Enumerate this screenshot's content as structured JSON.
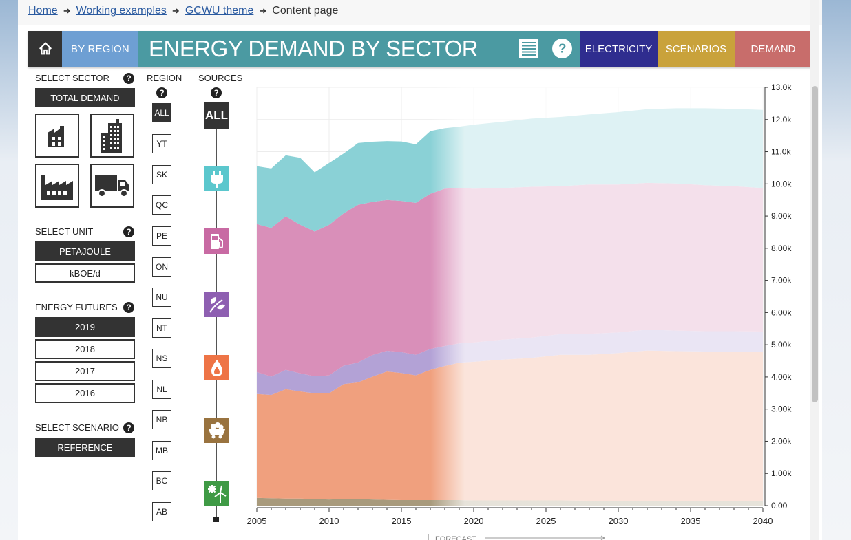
{
  "breadcrumbs": [
    "Home",
    "Working examples",
    "GCWU theme",
    "Content page"
  ],
  "header": {
    "by_region": "BY REGION",
    "title": "ENERGY DEMAND BY SECTOR",
    "electricity": "ELECTRICITY",
    "scenarios": "SCENARIOS",
    "demand": "DEMAND"
  },
  "colors": {
    "home": "#333333",
    "by_region": "#6e9fd3",
    "title": "#4b9aa2",
    "electricity": "#2f2d8f",
    "scenarios": "#c9a23b",
    "demand": "#c86d6b"
  },
  "sidebar": {
    "sector_label": "SELECT SECTOR",
    "sector_selected": "TOTAL DEMAND",
    "sector_icons": [
      "residential-icon",
      "commercial-icon",
      "industrial-icon",
      "transportation-icon"
    ],
    "unit_label": "SELECT UNIT",
    "units": [
      "PETAJOULE",
      "kBOE/d"
    ],
    "futures_label": "ENERGY FUTURES",
    "futures": [
      "2019",
      "2018",
      "2017",
      "2016"
    ],
    "scenario_label": "SELECT SCENARIO",
    "scenario": "REFERENCE"
  },
  "region": {
    "label": "REGION",
    "items": [
      "ALL",
      "YT",
      "SK",
      "QC",
      "PE",
      "ON",
      "NU",
      "NT",
      "NS",
      "NL",
      "NB",
      "MB",
      "BC",
      "AB"
    ]
  },
  "sources": {
    "label": "SOURCES",
    "all": "ALL",
    "items": [
      {
        "name": "electricity-icon",
        "color": "#5bc7cd"
      },
      {
        "name": "oil-products-icon",
        "color": "#c86aa3"
      },
      {
        "name": "biofuels-icon",
        "color": "#8e5fb1"
      },
      {
        "name": "natural-gas-icon",
        "color": "#ee7446"
      },
      {
        "name": "coal-icon",
        "color": "#99733f"
      },
      {
        "name": "renewables-icon",
        "color": "#3f9a45"
      }
    ]
  },
  "forecast_label": "FORECAST",
  "chart_data": {
    "type": "area",
    "stacked": true,
    "x": [
      2005,
      2006,
      2007,
      2008,
      2009,
      2010,
      2011,
      2012,
      2013,
      2014,
      2015,
      2016,
      2017,
      2018,
      2019,
      2020,
      2022,
      2024,
      2026,
      2028,
      2030,
      2032,
      2034,
      2036,
      2038,
      2040
    ],
    "x_ticks": [
      "2005",
      "2010",
      "2015",
      "2020",
      "2025",
      "2030",
      "2035",
      "2040"
    ],
    "y_ticks": [
      "0.00",
      "1.00k",
      "2.00k",
      "3.00k",
      "4.00k",
      "5.00k",
      "6.00k",
      "7.00k",
      "8.00k",
      "9.00k",
      "10.0k",
      "11.0k",
      "12.0k",
      "13.0k"
    ],
    "ylim": [
      0,
      13000
    ],
    "forecast_start": 2017,
    "series": [
      {
        "color": "#a89a7c",
        "values": [
          240,
          230,
          220,
          220,
          200,
          190,
          200,
          200,
          190,
          180,
          170,
          170,
          170,
          170,
          170,
          160,
          160,
          160,
          160,
          150,
          150,
          150,
          150,
          150,
          150,
          150
        ]
      },
      {
        "color": "#f0a07e",
        "values": [
          3230,
          3210,
          3400,
          3330,
          3290,
          3300,
          3580,
          3630,
          3820,
          3990,
          3950,
          3880,
          4050,
          4170,
          4270,
          4310,
          4380,
          4430,
          4530,
          4540,
          4590,
          4670,
          4650,
          4640,
          4640,
          4640
        ]
      },
      {
        "color": "#b3a2d6",
        "values": [
          680,
          570,
          600,
          560,
          530,
          560,
          570,
          620,
          670,
          640,
          650,
          640,
          650,
          620,
          600,
          600,
          620,
          630,
          640,
          650,
          640,
          650,
          640,
          630,
          630,
          620
        ]
      },
      {
        "color": "#d98fb9",
        "values": [
          4600,
          4620,
          4770,
          4620,
          4500,
          4680,
          4730,
          4900,
          4760,
          4690,
          4700,
          4720,
          4820,
          4890,
          4830,
          4780,
          4710,
          4690,
          4600,
          4640,
          4600,
          4560,
          4570,
          4540,
          4510,
          4460
        ]
      },
      {
        "color": "#8ad1d6",
        "values": [
          1800,
          1850,
          1900,
          2080,
          1840,
          1920,
          1860,
          1920,
          1870,
          1830,
          1850,
          1820,
          1950,
          1880,
          1910,
          1990,
          2060,
          2120,
          2150,
          2180,
          2250,
          2290,
          2340,
          2390,
          2400,
          2430
        ]
      }
    ]
  }
}
